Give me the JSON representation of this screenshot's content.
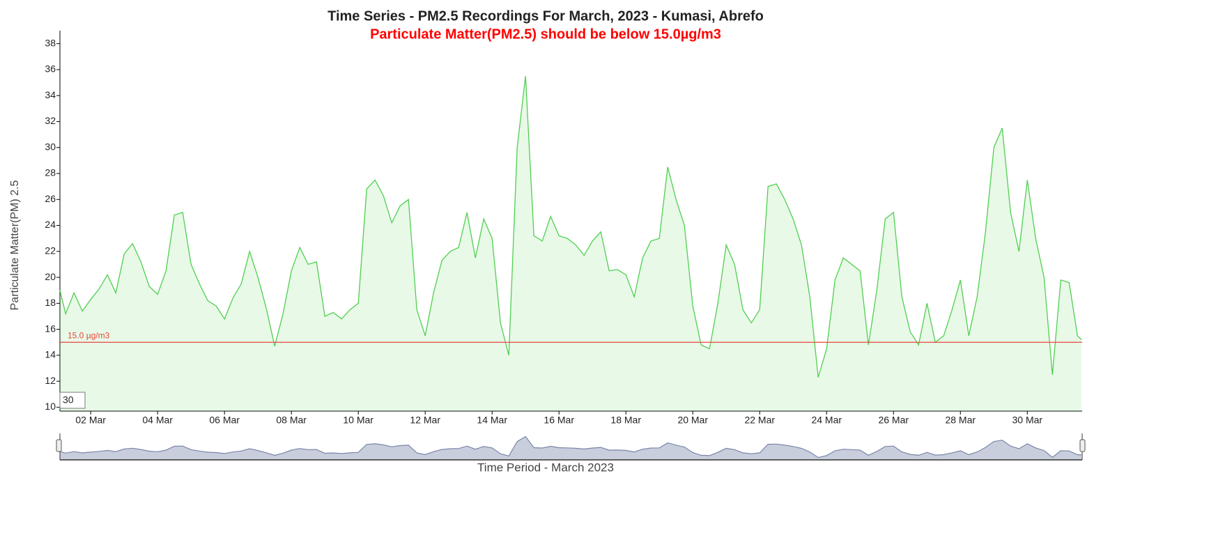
{
  "chart_data": {
    "type": "line",
    "title": "Time Series - PM2.5 Recordings For March, 2023 - Kumasi, Abrefo",
    "subtitle": "Particulate Matter(PM2.5) should be below 15.0µg/m3",
    "y_label": "Particulate Matter(PM) 2.5",
    "x_label": "Time Period - March 2023",
    "rolling_period": "30",
    "xlim": [
      1.08,
      31.64
    ],
    "xticks": [
      {
        "value": 2,
        "label": "02 Mar"
      },
      {
        "value": 4,
        "label": "04 Mar"
      },
      {
        "value": 6,
        "label": "06 Mar"
      },
      {
        "value": 8,
        "label": "08 Mar"
      },
      {
        "value": 10,
        "label": "10 Mar"
      },
      {
        "value": 12,
        "label": "12 Mar"
      },
      {
        "value": 14,
        "label": "14 Mar"
      },
      {
        "value": 16,
        "label": "16 Mar"
      },
      {
        "value": 18,
        "label": "18 Mar"
      },
      {
        "value": 20,
        "label": "20 Mar"
      },
      {
        "value": 22,
        "label": "22 Mar"
      },
      {
        "value": 24,
        "label": "24 Mar"
      },
      {
        "value": 26,
        "label": "26 Mar"
      },
      {
        "value": 28,
        "label": "28 Mar"
      },
      {
        "value": 30,
        "label": "30 Mar"
      }
    ],
    "ylim": [
      9.7,
      39.0
    ],
    "yticks": [
      10,
      12,
      14,
      16,
      18,
      20,
      22,
      24,
      26,
      28,
      30,
      32,
      34,
      36,
      38
    ],
    "threshold": {
      "value": 15,
      "label": "15.0 µg/m3",
      "color": "#e8453c"
    },
    "x": [
      1.08,
      1.25,
      1.5,
      1.75,
      2,
      2.25,
      2.5,
      2.75,
      3,
      3.25,
      3.5,
      3.75,
      4,
      4.25,
      4.5,
      4.75,
      5,
      5.25,
      5.5,
      5.75,
      6,
      6.25,
      6.5,
      6.75,
      7,
      7.25,
      7.5,
      7.75,
      8,
      8.25,
      8.5,
      8.75,
      9,
      9.25,
      9.5,
      9.75,
      10,
      10.25,
      10.5,
      10.75,
      11,
      11.25,
      11.5,
      11.75,
      12,
      12.25,
      12.5,
      12.75,
      13,
      13.25,
      13.5,
      13.75,
      14,
      14.25,
      14.5,
      14.75,
      15,
      15.25,
      15.5,
      15.75,
      16,
      16.25,
      16.5,
      16.75,
      17,
      17.25,
      17.5,
      17.75,
      18,
      18.25,
      18.5,
      18.75,
      19,
      19.25,
      19.5,
      19.75,
      20,
      20.25,
      20.5,
      20.75,
      21,
      21.25,
      21.5,
      21.75,
      22,
      22.25,
      22.5,
      22.75,
      23,
      23.25,
      23.5,
      23.75,
      24,
      24.25,
      24.5,
      24.75,
      25,
      25.25,
      25.5,
      25.75,
      26,
      26.25,
      26.5,
      26.75,
      27,
      27.25,
      27.5,
      27.75,
      28,
      28.25,
      28.5,
      28.75,
      29,
      29.25,
      29.5,
      29.75,
      30,
      30.25,
      30.5,
      30.75,
      31,
      31.25,
      31.5,
      31.62
    ],
    "series": [
      {
        "name": "PM2.5",
        "color": "#4fcf4f",
        "values": [
          19.0,
          17.2,
          18.8,
          17.4,
          18.3,
          19.1,
          20.2,
          18.8,
          21.8,
          22.6,
          21.2,
          19.3,
          18.7,
          20.5,
          24.8,
          25.0,
          21.0,
          19.5,
          18.2,
          17.8,
          16.8,
          18.4,
          19.5,
          22.0,
          20.0,
          17.6,
          14.7,
          17.2,
          20.5,
          22.3,
          21.0,
          21.2,
          17.0,
          17.3,
          16.8,
          17.5,
          18.0,
          26.8,
          27.5,
          26.3,
          24.2,
          25.5,
          26.0,
          17.5,
          15.5,
          18.8,
          21.3,
          22.0,
          22.3,
          25.0,
          21.5,
          24.5,
          23.0,
          16.5,
          14.0,
          30.0,
          35.5,
          23.2,
          22.8,
          24.7,
          23.2,
          23.0,
          22.5,
          21.7,
          22.8,
          23.5,
          20.5,
          20.6,
          20.2,
          18.5,
          21.5,
          22.8,
          23.0,
          28.5,
          26.0,
          24.0,
          17.8,
          14.8,
          14.5,
          18.0,
          22.5,
          21.0,
          17.5,
          16.5,
          17.5,
          27.0,
          27.2,
          26.0,
          24.5,
          22.5,
          18.5,
          12.3,
          14.5,
          19.8,
          21.5,
          21.0,
          20.5,
          14.8,
          19.0,
          24.5,
          25.0,
          18.5,
          15.8,
          14.8,
          18.0,
          15.0,
          15.5,
          17.5,
          19.8,
          15.5,
          18.5,
          23.5,
          30.0,
          31.5,
          25.0,
          22.0,
          27.5,
          23.0,
          20.0,
          12.5,
          19.8,
          19.6,
          15.5,
          15.2
        ]
      }
    ]
  }
}
